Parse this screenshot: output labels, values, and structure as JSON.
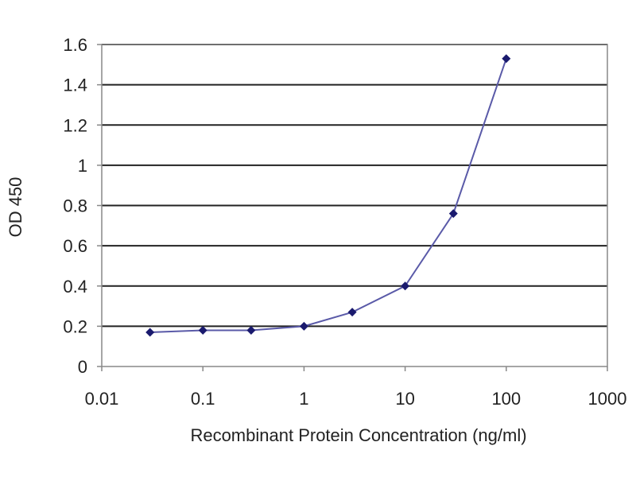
{
  "chart_data": {
    "type": "line",
    "title": "",
    "xlabel": "Recombinant Protein Concentration (ng/ml)",
    "ylabel": "OD 450",
    "x_scale": "log",
    "xlim": [
      0.01,
      1000
    ],
    "ylim": [
      0,
      1.6
    ],
    "x_ticks": [
      "0.01",
      "0.1",
      "1",
      "10",
      "100",
      "1000"
    ],
    "y_ticks": [
      "0",
      "0.2",
      "0.4",
      "0.6",
      "0.8",
      "1",
      "1.2",
      "1.4",
      "1.6"
    ],
    "grid": "horizontal",
    "legend": "none",
    "series": [
      {
        "x": [
          0.03,
          0.1,
          0.3,
          1,
          3,
          10,
          30,
          100
        ],
        "y": [
          0.17,
          0.18,
          0.18,
          0.2,
          0.27,
          0.4,
          0.76,
          1.53
        ]
      }
    ],
    "colors": {
      "line": "#5a5aa8",
      "marker": "#1a1a6e",
      "grid": "#222222",
      "axis": "#888888"
    }
  }
}
